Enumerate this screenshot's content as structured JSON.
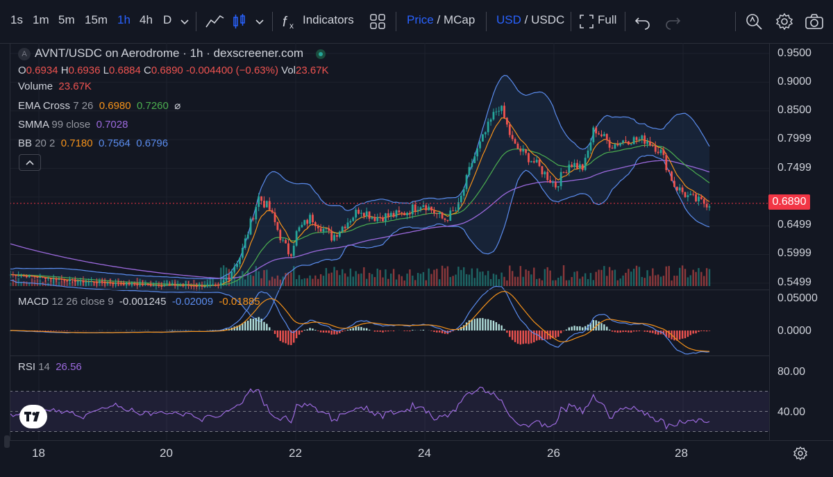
{
  "toolbar": {
    "intervals": [
      "1s",
      "1m",
      "5m",
      "15m",
      "1h",
      "4h",
      "D"
    ],
    "active_interval": "1h",
    "indicators_label": "Indicators",
    "price_label": "Price",
    "slash1": "/",
    "mcap_label": "MCap",
    "usd_label": "USD",
    "slash2": "/",
    "usdc_label": "USDC",
    "full_label": "Full"
  },
  "legend": {
    "symbol_badge": "A",
    "title": "AVNT/USDC on Aerodrome · 1h · dexscreener.com",
    "ohlc": {
      "o_label": "O",
      "o": "0.6934",
      "h_label": "H",
      "h": "0.6936",
      "l_label": "L",
      "l": "0.6884",
      "c_label": "C",
      "c": "0.6890",
      "change": "-0.004400 (−0.63%)",
      "vol_label": "Vol",
      "vol": "23.67K"
    },
    "volume": {
      "label": "Volume",
      "value": "23.67K"
    },
    "ema": {
      "label": "EMA Cross",
      "params": "7 26",
      "v1": "0.6980",
      "v2": "0.7260",
      "icon": "⌀"
    },
    "smma": {
      "label": "SMMA",
      "params": "99 close",
      "value": "0.7028"
    },
    "bb": {
      "label": "BB",
      "params": "20 2",
      "v1": "0.7180",
      "v2": "0.7564",
      "v3": "0.6796"
    },
    "macd": {
      "label": "MACD",
      "params": "12 26 close 9",
      "v1": "-0.001245",
      "v2": "-0.02009",
      "v3": "-0.01885"
    },
    "rsi": {
      "label": "RSI",
      "params": "14",
      "value": "26.56"
    }
  },
  "price_axis": [
    "0.9500",
    "0.9000",
    "0.8500",
    "0.7999",
    "0.7499",
    "0.6890",
    "0.6499",
    "0.5999",
    "0.5499"
  ],
  "macd_axis": [
    "0.05000",
    "0.0000"
  ],
  "rsi_axis": [
    "80.00",
    "40.00"
  ],
  "current_price": "0.6890",
  "x_axis": [
    "18",
    "20",
    "22",
    "24",
    "26",
    "28"
  ],
  "colors": {
    "up": "#26a69a",
    "down": "#ef5350",
    "ema_fast": "#f7931a",
    "ema_slow": "#4caf50",
    "smma": "#9c6ade",
    "bb": "#5b8def",
    "bg": "#131722",
    "price_tag": "#f23645"
  },
  "chart_data": {
    "type": "line",
    "title": "AVNT/USDC on Aerodrome · 1h · dexscreener.com",
    "x": [
      "18",
      "19",
      "20",
      "21",
      "22",
      "23",
      "24",
      "25",
      "26",
      "27",
      "28"
    ],
    "series": [
      {
        "name": "EMA Cross 7 26",
        "values": [
          0.56,
          0.55,
          0.545,
          0.58,
          0.66,
          0.665,
          0.68,
          0.8,
          0.76,
          0.785,
          0.7
        ]
      },
      {
        "name": "SMMA 99 close",
        "values": [
          0.6,
          0.585,
          0.575,
          0.57,
          0.59,
          0.615,
          0.635,
          0.655,
          0.675,
          0.69,
          0.7
        ]
      }
    ],
    "candles_close": [
      0.56,
      0.55,
      0.545,
      0.57,
      0.65,
      0.665,
      0.67,
      0.82,
      0.75,
      0.79,
      0.689
    ],
    "macd": [
      0.0,
      0.0,
      0.0,
      0.0,
      0.03,
      -0.005,
      0.0,
      0.04,
      0.005,
      0.002,
      -0.019
    ],
    "rsi": [
      40,
      50,
      45,
      50,
      70,
      45,
      50,
      70,
      45,
      55,
      27
    ],
    "ylim": [
      0.5499,
      0.95
    ]
  }
}
